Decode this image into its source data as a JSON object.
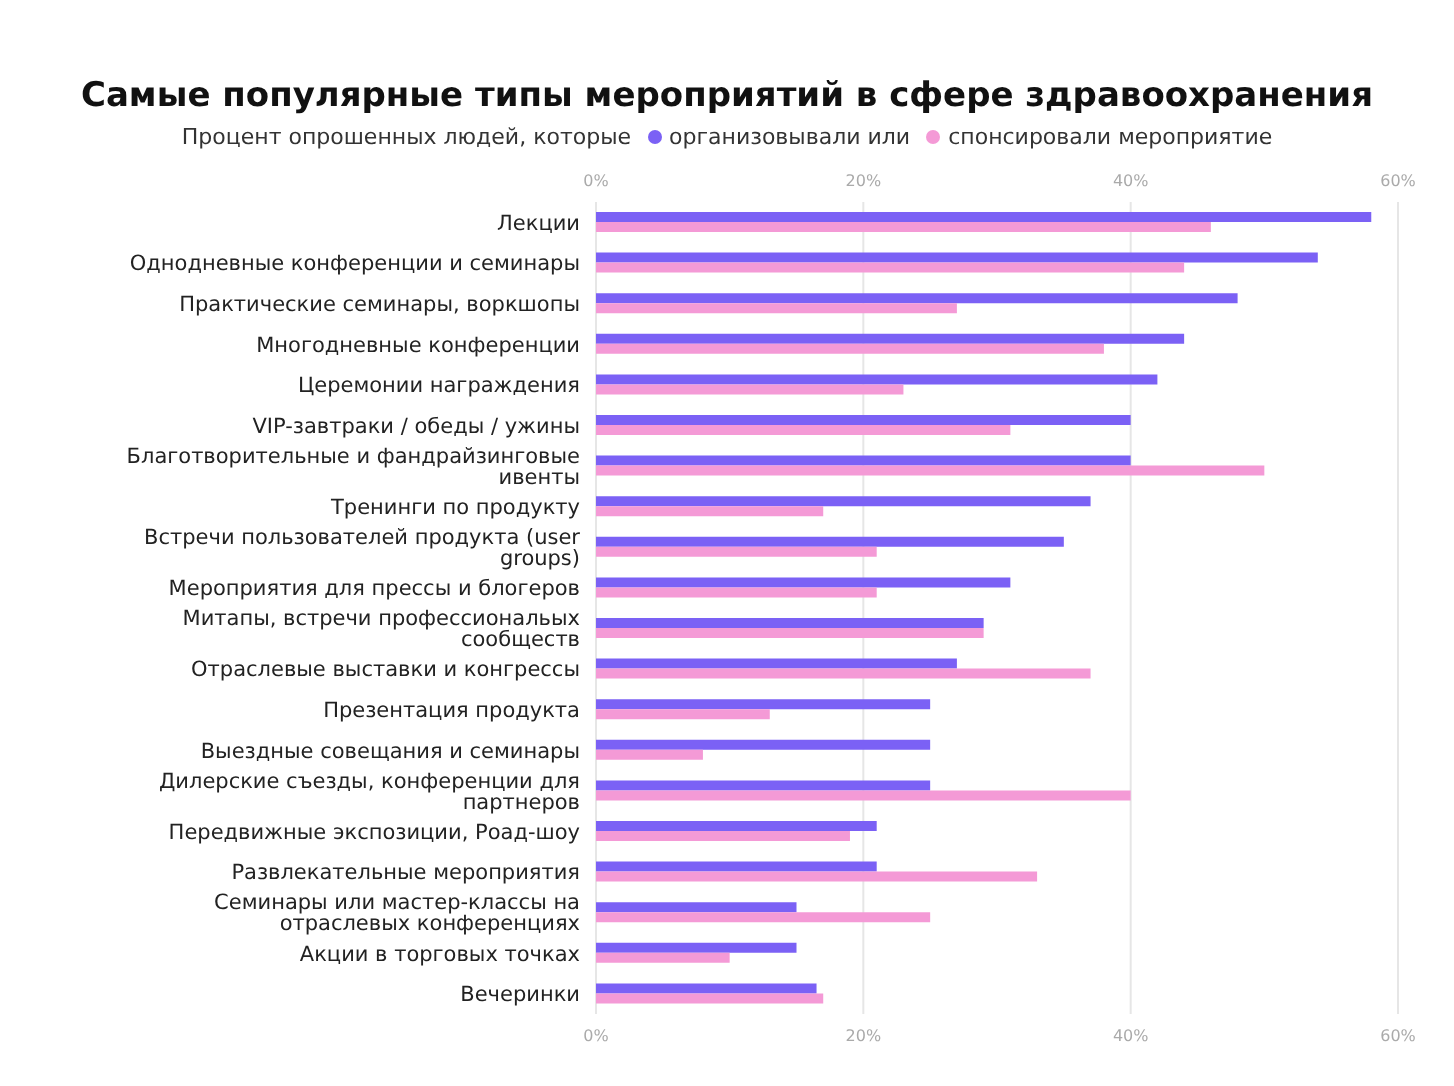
{
  "chart_data": {
    "type": "bar",
    "orientation": "horizontal",
    "title": "Самые популярные типы мероприятий в сфере здравоохранения",
    "legend_title": "Процент опрошенных людей, которые",
    "categories": [
      "Лекции",
      "Однодневные конференции и семинары",
      "Практические семинары, воркшопы",
      "Многодневные конференции",
      "Церемонии награждения",
      "VIP-завтраки / обеды / ужины",
      "Благотворительные и фандрайзинговые ивенты",
      "Тренинги по продукту",
      "Встречи пользователей продукта (user groups)",
      "Мероприятия для прессы и блогеров",
      "Митапы, встречи профессиональых сообществ",
      "Отраслевые выставки и конгрессы",
      "Презентация продукта",
      "Выездные совещания и семинары",
      "Дилерские съезды, конференции для партнеров",
      "Передвижные экспозиции, Роад-шоу",
      "Развлекательные мероприятия",
      "Семинары или мастер-классы на отраслевых конференциях",
      "Акции в торговых точках",
      "Вечеринки"
    ],
    "series": [
      {
        "name": "организовывали или",
        "color": "#7b61f5",
        "values": [
          58,
          54,
          48,
          44,
          42,
          40,
          40,
          37,
          35,
          31,
          29,
          27,
          25,
          25,
          25,
          21,
          21,
          15,
          15,
          16.5
        ]
      },
      {
        "name": "спонсировали мероприятие",
        "color": "#f49ad6",
        "values": [
          46,
          44,
          27,
          38,
          23,
          31,
          50,
          17,
          21,
          21,
          29,
          37,
          13,
          8,
          40,
          19,
          33,
          25,
          10,
          17
        ]
      }
    ],
    "xlim": [
      0,
      60
    ],
    "xticks": [
      {
        "value": 0,
        "label": "0%"
      },
      {
        "value": 20,
        "label": "20%"
      },
      {
        "value": 40,
        "label": "40%"
      },
      {
        "value": 60,
        "label": "60%"
      }
    ],
    "x2lim": [
      0,
      60
    ],
    "x2ticks": [
      {
        "value": 0,
        "label": "0%"
      },
      {
        "value": 20,
        "label": "20%"
      },
      {
        "value": 40,
        "label": "40%"
      },
      {
        "value": 60,
        "label": "60%"
      }
    ],
    "grid": "x",
    "legend": "top"
  }
}
